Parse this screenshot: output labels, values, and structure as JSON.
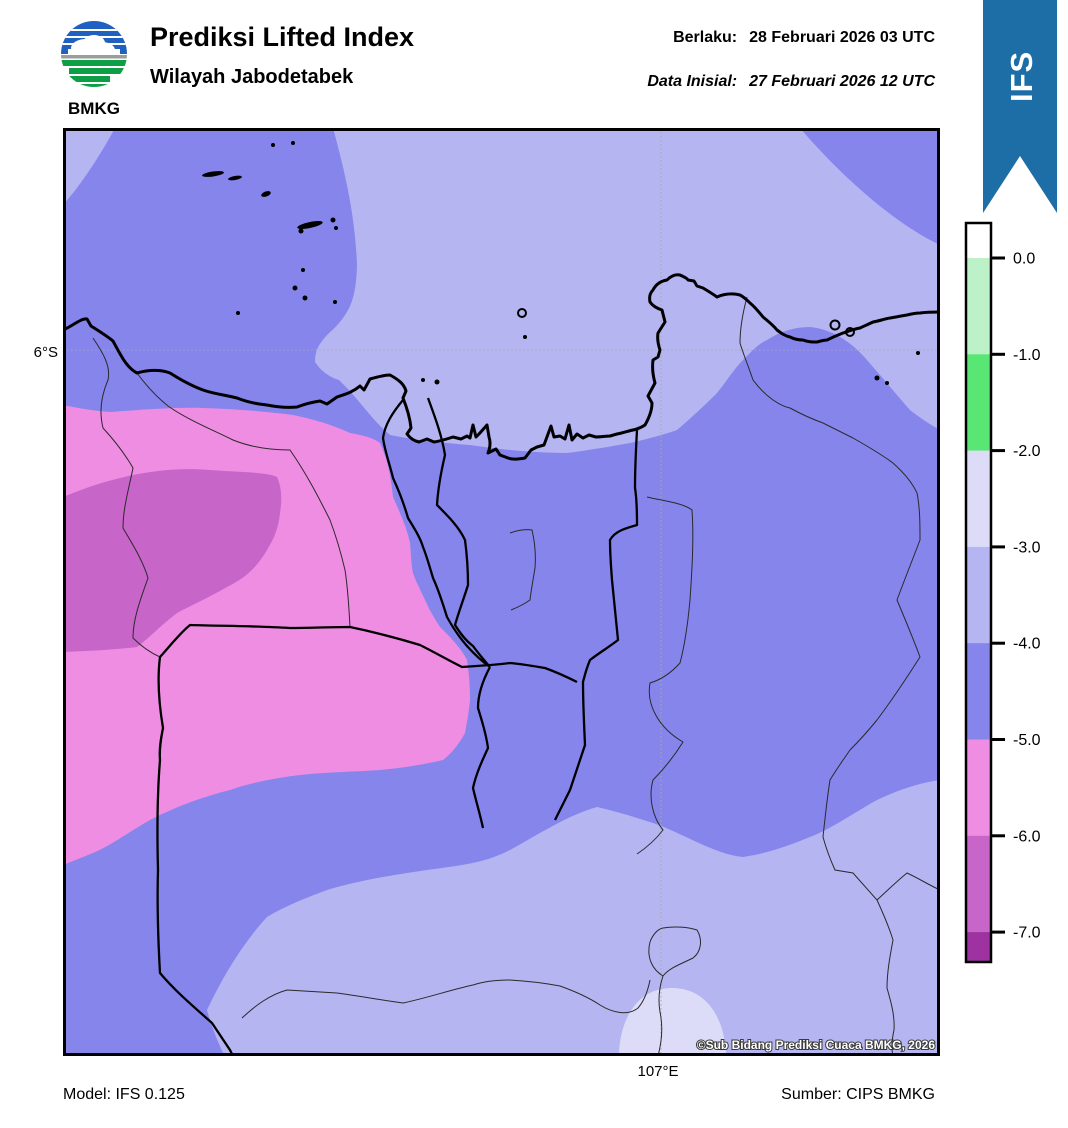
{
  "header": {
    "logo_text": "BMKG",
    "title": "Prediksi Lifted Index",
    "subtitle": "Wilayah Jabodetabek",
    "berlaku_label": "Berlaku:",
    "berlaku_value": "28 Februari 2026 03 UTC",
    "inisial_label": "Data Inisial:",
    "inisial_value": "27 Februari 2026 12 UTC",
    "ribbon_label": "IFS",
    "ribbon_color": "#1d6da6"
  },
  "map": {
    "lat_label": "6°S",
    "lon_label": "107°E",
    "copyright": "©Sub Bidang Prediksi Cuaca BMKG, 2026"
  },
  "map_palette": {
    "bg": "#b5b5f2",
    "blue": "#8585ec",
    "pink": "#ef8de3",
    "core": "#c765c9",
    "pale": "#dcdcf8"
  },
  "colorbar": {
    "ticks": [
      "0.0",
      "-1.0",
      "-2.0",
      "-3.0",
      "-4.0",
      "-5.0",
      "-6.0",
      "-7.0"
    ],
    "segments": [
      {
        "range": "> 0.0",
        "color": "#ffffff"
      },
      {
        "range": "0.0 to -1.0",
        "color": "#bdf2c9"
      },
      {
        "range": "-1.0 to -2.0",
        "color": "#58e674"
      },
      {
        "range": "-2.0 to -3.0",
        "color": "#dcdcf8"
      },
      {
        "range": "-3.0 to -4.0",
        "color": "#b5b5f2"
      },
      {
        "range": "-4.0 to -5.0",
        "color": "#8585ec"
      },
      {
        "range": "-5.0 to -6.0",
        "color": "#ef8de3"
      },
      {
        "range": "-6.0 to -7.0",
        "color": "#c765c9"
      },
      {
        "range": "< -7.0",
        "color": "#9e32a0"
      }
    ]
  },
  "footer": {
    "model": "Model: IFS 0.125",
    "source": "Sumber: CIPS BMKG"
  }
}
